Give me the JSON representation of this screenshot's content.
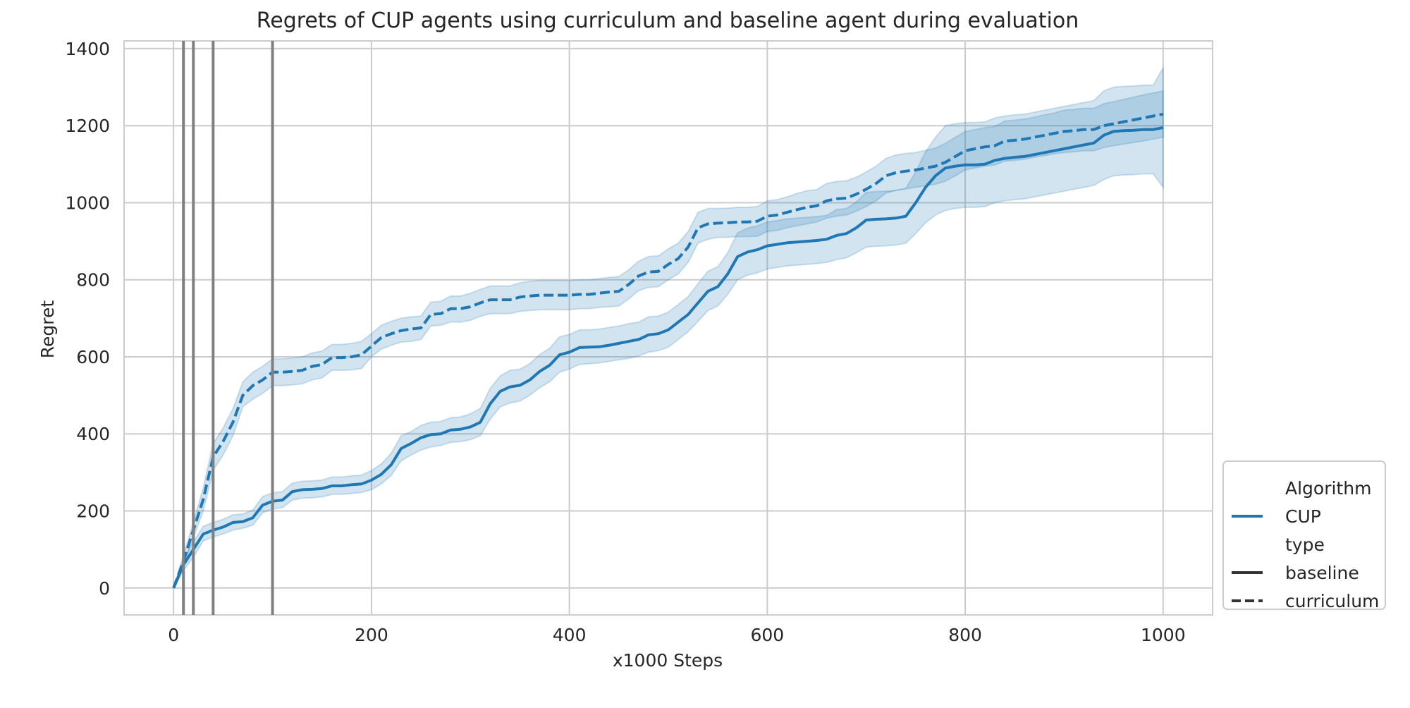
{
  "chart_data": {
    "type": "line",
    "title": "Regrets of CUP agents using curriculum and baseline agent during evaluation",
    "xlabel": "x1000 Steps",
    "ylabel": "Regret",
    "xlim": [
      -50,
      1050
    ],
    "ylim": [
      -70,
      1420
    ],
    "xticks": [
      0,
      200,
      400,
      600,
      800,
      1000
    ],
    "yticks": [
      0,
      200,
      400,
      600,
      800,
      1000,
      1200,
      1400
    ],
    "grid": true,
    "legend_placement": "lower-right outside",
    "legend": [
      {
        "kind": "header",
        "label": "Algorithm"
      },
      {
        "kind": "color",
        "label": "CUP",
        "color": "#1f77b4"
      },
      {
        "kind": "header",
        "label": "type"
      },
      {
        "kind": "style",
        "label": "baseline",
        "dash": "solid"
      },
      {
        "kind": "style",
        "label": "curriculum",
        "dash": "dashed"
      }
    ],
    "vertical_lines": [
      10,
      20,
      40,
      100
    ],
    "vertical_line_color": "#808080",
    "series_color": "#1f77b4",
    "band_color": "#1f77b4",
    "series": [
      {
        "algorithm": "CUP",
        "type": "curriculum",
        "dash": "dashed",
        "x": [
          0,
          10,
          20,
          30,
          40,
          50,
          60,
          70,
          80,
          90,
          100,
          110,
          120,
          130,
          140,
          150,
          160,
          170,
          180,
          190,
          200,
          210,
          220,
          230,
          240,
          250,
          260,
          270,
          280,
          290,
          300,
          310,
          320,
          330,
          340,
          350,
          360,
          370,
          380,
          390,
          400,
          410,
          420,
          430,
          440,
          450,
          460,
          470,
          480,
          490,
          500,
          510,
          520,
          530,
          540,
          550,
          560,
          570,
          580,
          590,
          600,
          610,
          620,
          630,
          640,
          650,
          660,
          670,
          680,
          690,
          700,
          710,
          720,
          730,
          740,
          750,
          760,
          770,
          780,
          790,
          800,
          810,
          820,
          830,
          840,
          850,
          860,
          870,
          880,
          890,
          900,
          910,
          920,
          930,
          940,
          950,
          960,
          970,
          980,
          990,
          1000
        ],
        "y": [
          0,
          70,
          150,
          230,
          340,
          380,
          430,
          500,
          525,
          540,
          560,
          560,
          562,
          565,
          575,
          580,
          598,
          598,
          600,
          605,
          628,
          650,
          660,
          668,
          672,
          675,
          710,
          712,
          725,
          725,
          730,
          740,
          748,
          748,
          748,
          755,
          758,
          760,
          760,
          760,
          760,
          762,
          762,
          765,
          768,
          770,
          788,
          810,
          820,
          822,
          840,
          855,
          885,
          935,
          945,
          947,
          948,
          950,
          950,
          952,
          965,
          968,
          975,
          982,
          988,
          992,
          1005,
          1010,
          1012,
          1022,
          1035,
          1050,
          1070,
          1078,
          1082,
          1085,
          1090,
          1095,
          1105,
          1120,
          1135,
          1140,
          1145,
          1148,
          1160,
          1162,
          1165,
          1170,
          1175,
          1180,
          1185,
          1187,
          1190,
          1190,
          1200,
          1205,
          1210,
          1215,
          1220,
          1225,
          1230
        ],
        "lower": [
          0,
          55,
          130,
          200,
          305,
          345,
          395,
          470,
          490,
          505,
          525,
          525,
          527,
          530,
          540,
          545,
          565,
          565,
          566,
          570,
          600,
          620,
          630,
          638,
          640,
          645,
          680,
          682,
          690,
          690,
          695,
          705,
          712,
          712,
          712,
          718,
          720,
          722,
          722,
          722,
          722,
          725,
          725,
          728,
          730,
          732,
          750,
          772,
          780,
          782,
          800,
          815,
          845,
          895,
          905,
          910,
          910,
          912,
          912,
          913,
          925,
          928,
          935,
          940,
          945,
          950,
          960,
          965,
          968,
          978,
          990,
          1005,
          1025,
          1032,
          1036,
          1040,
          1044,
          1048,
          1056,
          1070,
          1085,
          1090,
          1095,
          1098,
          1108,
          1110,
          1113,
          1118,
          1122,
          1127,
          1130,
          1132,
          1135,
          1135,
          1143,
          1148,
          1152,
          1156,
          1160,
          1165,
          1170
        ],
        "upper": [
          0,
          85,
          170,
          260,
          375,
          415,
          465,
          535,
          560,
          575,
          595,
          595,
          597,
          600,
          610,
          615,
          632,
          632,
          635,
          640,
          660,
          682,
          692,
          700,
          704,
          706,
          742,
          744,
          758,
          758,
          765,
          775,
          784,
          784,
          784,
          792,
          796,
          798,
          798,
          798,
          798,
          800,
          800,
          803,
          806,
          808,
          826,
          848,
          860,
          862,
          880,
          895,
          925,
          975,
          985,
          985,
          986,
          988,
          988,
          990,
          1005,
          1008,
          1015,
          1024,
          1031,
          1034,
          1050,
          1055,
          1057,
          1066,
          1080,
          1095,
          1115,
          1124,
          1128,
          1130,
          1136,
          1142,
          1154,
          1170,
          1185,
          1190,
          1195,
          1198,
          1212,
          1214,
          1217,
          1222,
          1228,
          1233,
          1240,
          1242,
          1245,
          1245,
          1257,
          1262,
          1268,
          1274,
          1280,
          1285,
          1290
        ]
      },
      {
        "algorithm": "CUP",
        "type": "baseline",
        "dash": "solid",
        "x": [
          0,
          10,
          20,
          30,
          40,
          50,
          60,
          70,
          80,
          90,
          100,
          110,
          120,
          130,
          140,
          150,
          160,
          170,
          180,
          190,
          200,
          210,
          220,
          230,
          240,
          250,
          260,
          270,
          280,
          290,
          300,
          310,
          320,
          330,
          340,
          350,
          360,
          370,
          380,
          390,
          400,
          410,
          420,
          430,
          440,
          450,
          460,
          470,
          480,
          490,
          500,
          510,
          520,
          530,
          540,
          550,
          560,
          570,
          580,
          590,
          600,
          610,
          620,
          630,
          640,
          650,
          660,
          670,
          680,
          690,
          700,
          710,
          720,
          730,
          740,
          750,
          760,
          770,
          780,
          790,
          800,
          810,
          820,
          830,
          840,
          850,
          860,
          870,
          880,
          890,
          900,
          910,
          920,
          930,
          940,
          950,
          960,
          970,
          980,
          990,
          1000
        ],
        "y": [
          0,
          60,
          100,
          140,
          150,
          158,
          170,
          172,
          182,
          215,
          225,
          228,
          250,
          255,
          256,
          258,
          265,
          265,
          268,
          270,
          280,
          295,
          320,
          362,
          375,
          390,
          398,
          400,
          410,
          412,
          418,
          430,
          478,
          510,
          522,
          526,
          540,
          562,
          578,
          605,
          612,
          624,
          625,
          626,
          630,
          635,
          640,
          645,
          657,
          660,
          670,
          690,
          710,
          740,
          770,
          782,
          815,
          860,
          872,
          878,
          888,
          892,
          896,
          898,
          900,
          902,
          905,
          915,
          920,
          935,
          955,
          957,
          958,
          960,
          965,
          1000,
          1040,
          1070,
          1090,
          1095,
          1098,
          1098,
          1100,
          1110,
          1115,
          1118,
          1120,
          1125,
          1130,
          1135,
          1140,
          1145,
          1150,
          1155,
          1175,
          1185,
          1187,
          1188,
          1190,
          1190,
          1195
        ],
        "lower": [
          0,
          45,
          80,
          122,
          132,
          140,
          150,
          155,
          163,
          195,
          205,
          208,
          228,
          233,
          234,
          236,
          243,
          243,
          245,
          248,
          255,
          270,
          292,
          330,
          345,
          358,
          366,
          370,
          378,
          380,
          385,
          395,
          438,
          470,
          480,
          485,
          500,
          520,
          535,
          560,
          568,
          580,
          582,
          584,
          588,
          592,
          596,
          602,
          612,
          616,
          625,
          645,
          665,
          692,
          720,
          732,
          762,
          800,
          812,
          818,
          828,
          832,
          836,
          838,
          840,
          842,
          845,
          852,
          857,
          870,
          885,
          887,
          888,
          890,
          895,
          920,
          948,
          968,
          980,
          985,
          988,
          988,
          990,
          1000,
          1005,
          1008,
          1010,
          1015,
          1020,
          1025,
          1030,
          1035,
          1040,
          1045,
          1060,
          1070,
          1072,
          1073,
          1075,
          1075,
          1040
        ],
        "upper": [
          0,
          75,
          120,
          160,
          170,
          178,
          190,
          192,
          202,
          237,
          247,
          250,
          272,
          277,
          278,
          280,
          288,
          288,
          291,
          293,
          305,
          322,
          350,
          395,
          406,
          422,
          430,
          432,
          442,
          444,
          452,
          466,
          518,
          550,
          565,
          568,
          582,
          606,
          622,
          652,
          658,
          670,
          670,
          672,
          676,
          680,
          686,
          690,
          704,
          706,
          716,
          736,
          756,
          790,
          822,
          834,
          870,
          922,
          934,
          940,
          950,
          954,
          958,
          960,
          962,
          964,
          967,
          982,
          985,
          1002,
          1027,
          1029,
          1030,
          1032,
          1037,
          1080,
          1132,
          1170,
          1200,
          1205,
          1208,
          1208,
          1210,
          1220,
          1225,
          1228,
          1230,
          1235,
          1240,
          1245,
          1250,
          1255,
          1260,
          1265,
          1290,
          1300,
          1302,
          1303,
          1305,
          1305,
          1350
        ]
      }
    ]
  }
}
